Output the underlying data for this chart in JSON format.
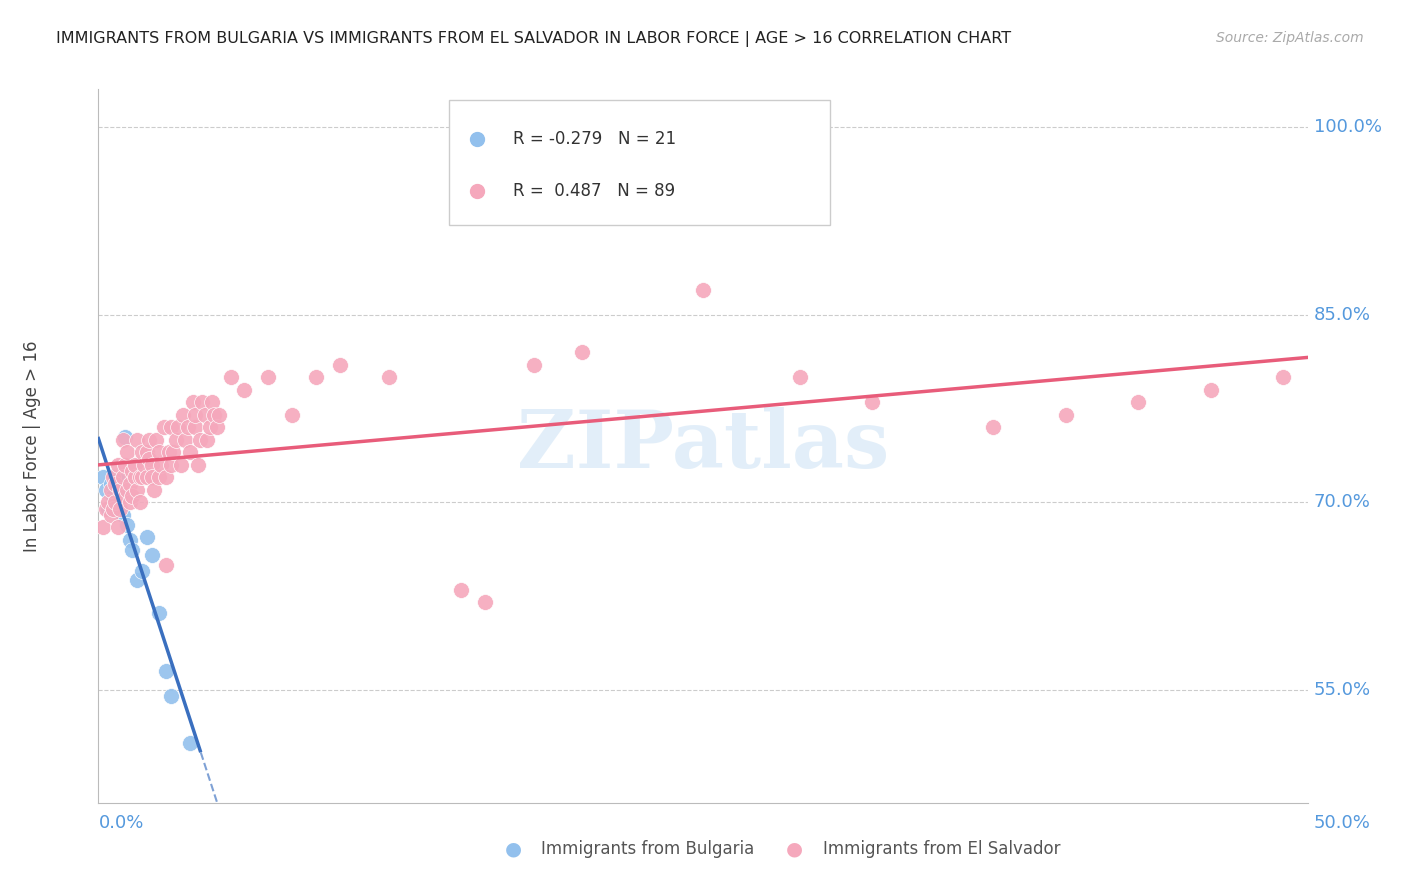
{
  "title": "IMMIGRANTS FROM BULGARIA VS IMMIGRANTS FROM EL SALVADOR IN LABOR FORCE | AGE > 16 CORRELATION CHART",
  "source": "Source: ZipAtlas.com",
  "ylabel": "In Labor Force | Age > 16",
  "xlim": [
    0.0,
    0.5
  ],
  "ylim": [
    0.46,
    1.03
  ],
  "yticks": [
    0.55,
    0.7,
    0.85,
    1.0
  ],
  "ytick_labels": [
    "55.0%",
    "70.0%",
    "85.0%",
    "100.0%"
  ],
  "bg_color": "#ffffff",
  "grid_color": "#cccccc",
  "bulgaria_color": "#92C0ED",
  "el_salvador_color": "#F5A8BC",
  "bulgaria_line_color": "#3A6FBF",
  "el_salvador_line_color": "#E85C7A",
  "r_bulgaria": -0.279,
  "n_bulgaria": 21,
  "r_el_salvador": 0.487,
  "n_el_salvador": 89,
  "watermark_text": "ZIPatlas",
  "axis_label_color": "#5599DD",
  "bulgaria_scatter_x": [
    0.002,
    0.003,
    0.004,
    0.005,
    0.006,
    0.007,
    0.008,
    0.009,
    0.01,
    0.011,
    0.012,
    0.013,
    0.014,
    0.016,
    0.018,
    0.02,
    0.022,
    0.025,
    0.028,
    0.03,
    0.038
  ],
  "bulgaria_scatter_y": [
    0.72,
    0.71,
    0.695,
    0.715,
    0.705,
    0.72,
    0.718,
    0.705,
    0.69,
    0.752,
    0.682,
    0.67,
    0.662,
    0.638,
    0.645,
    0.672,
    0.658,
    0.612,
    0.565,
    0.545,
    0.508
  ],
  "el_salvador_scatter_x": [
    0.002,
    0.003,
    0.004,
    0.005,
    0.005,
    0.006,
    0.006,
    0.007,
    0.007,
    0.008,
    0.008,
    0.009,
    0.009,
    0.01,
    0.01,
    0.011,
    0.011,
    0.012,
    0.012,
    0.013,
    0.013,
    0.014,
    0.014,
    0.015,
    0.015,
    0.016,
    0.016,
    0.017,
    0.017,
    0.018,
    0.018,
    0.019,
    0.02,
    0.02,
    0.021,
    0.021,
    0.022,
    0.022,
    0.023,
    0.024,
    0.025,
    0.025,
    0.026,
    0.027,
    0.028,
    0.028,
    0.029,
    0.03,
    0.03,
    0.031,
    0.032,
    0.033,
    0.034,
    0.035,
    0.036,
    0.037,
    0.038,
    0.039,
    0.04,
    0.04,
    0.041,
    0.042,
    0.043,
    0.044,
    0.045,
    0.046,
    0.047,
    0.048,
    0.049,
    0.05,
    0.055,
    0.06,
    0.07,
    0.08,
    0.09,
    0.1,
    0.12,
    0.15,
    0.16,
    0.18,
    0.2,
    0.25,
    0.29,
    0.32,
    0.37,
    0.4,
    0.43,
    0.46,
    0.49
  ],
  "el_salvador_scatter_y": [
    0.68,
    0.695,
    0.7,
    0.69,
    0.71,
    0.72,
    0.695,
    0.715,
    0.7,
    0.68,
    0.73,
    0.71,
    0.695,
    0.72,
    0.75,
    0.705,
    0.73,
    0.71,
    0.74,
    0.715,
    0.7,
    0.725,
    0.705,
    0.72,
    0.73,
    0.71,
    0.75,
    0.72,
    0.7,
    0.74,
    0.72,
    0.73,
    0.72,
    0.74,
    0.735,
    0.75,
    0.73,
    0.72,
    0.71,
    0.75,
    0.74,
    0.72,
    0.73,
    0.76,
    0.72,
    0.65,
    0.74,
    0.73,
    0.76,
    0.74,
    0.75,
    0.76,
    0.73,
    0.77,
    0.75,
    0.76,
    0.74,
    0.78,
    0.76,
    0.77,
    0.73,
    0.75,
    0.78,
    0.77,
    0.75,
    0.76,
    0.78,
    0.77,
    0.76,
    0.77,
    0.8,
    0.79,
    0.8,
    0.77,
    0.8,
    0.81,
    0.8,
    0.63,
    0.62,
    0.81,
    0.82,
    0.87,
    0.8,
    0.78,
    0.76,
    0.77,
    0.78,
    0.79,
    0.8
  ]
}
